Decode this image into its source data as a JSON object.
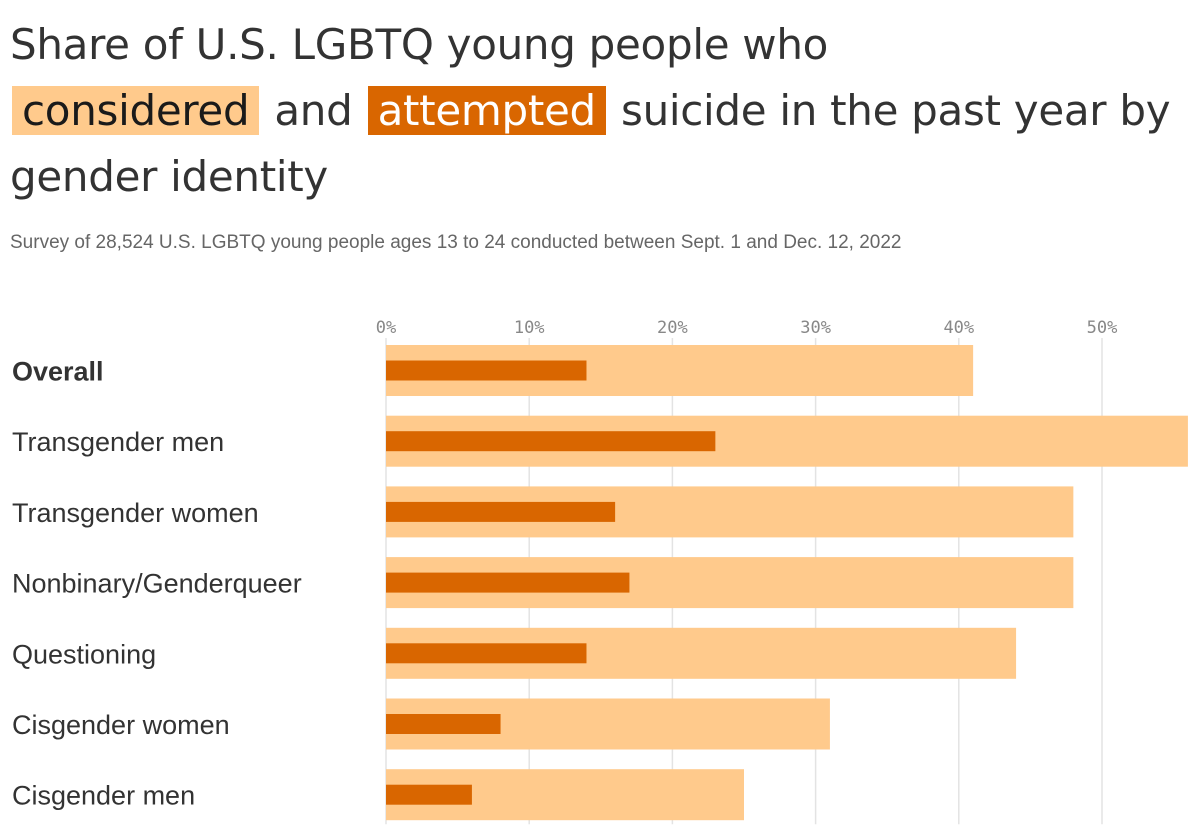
{
  "colors": {
    "considered": "#ffca8c",
    "attempted": "#d96600",
    "grid": "#e3e3e3",
    "text": "#333333",
    "subtext": "#666666"
  },
  "title": {
    "part1": "Share of U.S. LGBTQ young people who",
    "considered": "considered",
    "and": "and",
    "attempted": "attempted",
    "part2": "suicide in the past year by gender identity"
  },
  "subtitle": "Survey of 28,524 U.S. LGBTQ young people ages 13 to 24 conducted between Sept. 1 and Dec. 12, 2022",
  "chart_data": {
    "type": "bar",
    "orientation": "horizontal",
    "categories": [
      "Overall",
      "Transgender men",
      "Transgender women",
      "Nonbinary/Genderqueer",
      "Questioning",
      "Cisgender women",
      "Cisgender men"
    ],
    "series": [
      {
        "name": "considered",
        "values": [
          41,
          56,
          48,
          48,
          44,
          31,
          25
        ]
      },
      {
        "name": "attempted",
        "values": [
          14,
          23,
          16,
          17,
          14,
          8,
          6
        ]
      }
    ],
    "xticks": [
      0,
      10,
      20,
      30,
      40,
      50
    ],
    "xtick_labels": [
      "0%",
      "10%",
      "20%",
      "30%",
      "40%",
      "50%"
    ],
    "xlim": [
      0,
      56
    ],
    "grid": true,
    "axis_position": "top"
  }
}
